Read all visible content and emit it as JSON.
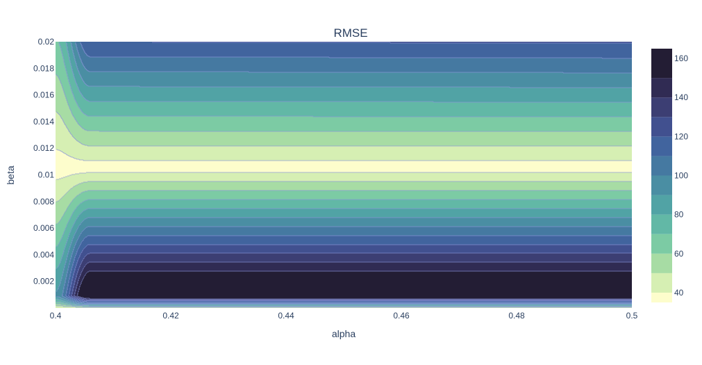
{
  "chart_data": {
    "type": "contour",
    "title": "RMSE",
    "xlabel": "alpha",
    "ylabel": "beta",
    "xlim": [
      0.4,
      0.5
    ],
    "ylim": [
      0.0,
      0.02
    ],
    "x_ticks": [
      0.4,
      0.42,
      0.44,
      0.46,
      0.48,
      0.5
    ],
    "x_tick_labels": [
      "0.4",
      "0.42",
      "0.44",
      "0.46",
      "0.48",
      "0.5"
    ],
    "y_ticks": [
      0.002,
      0.004,
      0.006,
      0.008,
      0.01,
      0.012,
      0.014,
      0.016,
      0.018,
      0.02
    ],
    "y_tick_labels": [
      "0.002",
      "0.004",
      "0.006",
      "0.008",
      "0.01",
      "0.012",
      "0.014",
      "0.016",
      "0.018",
      "0.02"
    ],
    "colorbar": {
      "range": [
        35,
        165
      ],
      "ticks": [
        40,
        60,
        80,
        100,
        120,
        140,
        160
      ],
      "tick_labels": [
        "40",
        "60",
        "80",
        "100",
        "120",
        "140",
        "160"
      ],
      "contour_start": 40,
      "contour_step": 10,
      "colorscale": [
        "#fdfdcc",
        "#d6efb3",
        "#a7dca4",
        "#7ccba4",
        "#62b8a6",
        "#51a3a5",
        "#4a8ea3",
        "#4579a1",
        "#41649e",
        "#41508f",
        "#3c3e73",
        "#302b53",
        "#231d34"
      ]
    },
    "contour_levels_beta_at_min_alpha": [
      {
        "rmse": 40,
        "beta_low": 0.0074,
        "beta_high": 0.0126
      },
      {
        "rmse": 50,
        "beta_low": 0.006,
        "beta_high": 0.0135
      },
      {
        "rmse": 60,
        "beta_low": 0.0052,
        "beta_high": 0.0145
      },
      {
        "rmse": 70,
        "beta_low": 0.0045,
        "beta_high": 0.0155
      },
      {
        "rmse": 80,
        "beta_low": 0.0038,
        "beta_high": 0.0165
      },
      {
        "rmse": 90,
        "beta_low": 0.0031,
        "beta_high": 0.0175
      },
      {
        "rmse": 100,
        "beta_low": 0.0024,
        "beta_high": 0.0185
      }
    ],
    "valley_center_beta": 0.0105,
    "min_rmse": 35,
    "max_rmse": 165
  }
}
